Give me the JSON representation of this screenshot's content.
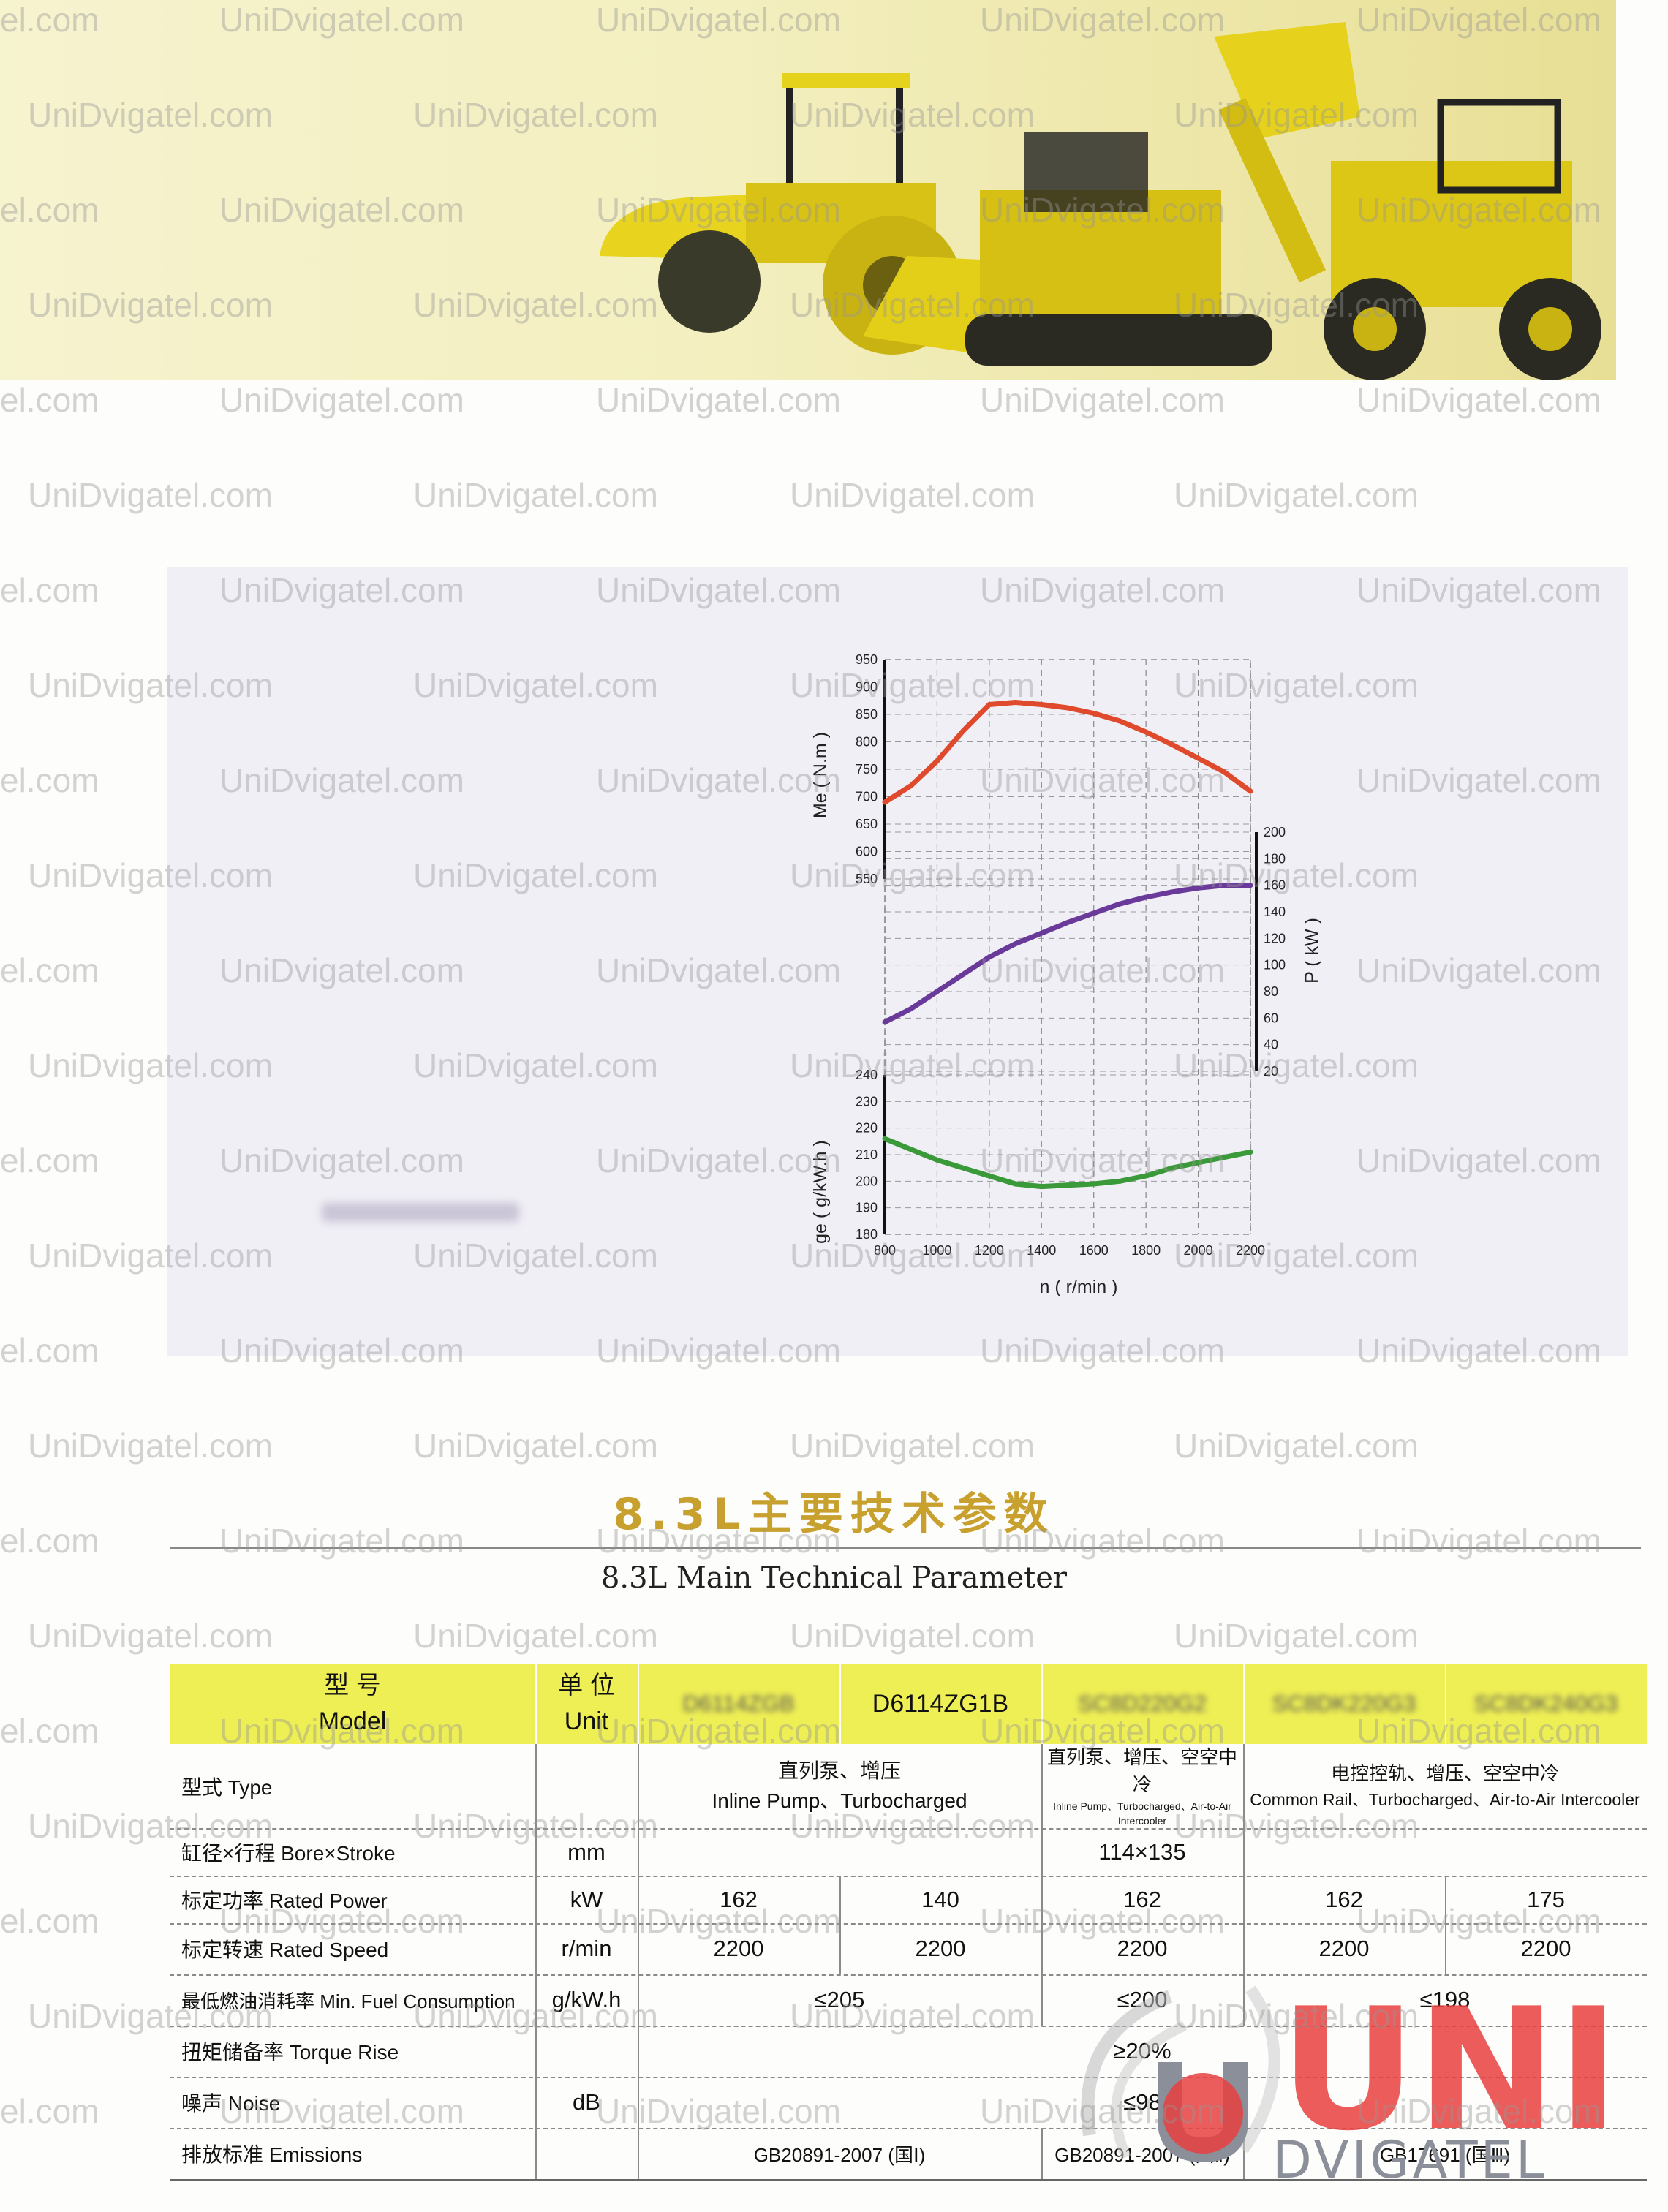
{
  "watermark": {
    "text": "UniDvigatel.com",
    "partial": "el.com"
  },
  "chart_data": {
    "type": "line",
    "xlabel": "n ( r/min )",
    "x_ticks": [
      800,
      1000,
      1200,
      1400,
      1600,
      1800,
      2000,
      2200
    ],
    "xlim": [
      800,
      2200
    ],
    "axes": [
      {
        "label": "Me ( N.m )",
        "ticks": [
          550,
          600,
          650,
          700,
          750,
          800,
          850,
          900,
          950
        ],
        "ylim": [
          550,
          950
        ],
        "series": {
          "color": "#e04a2c",
          "x": [
            800,
            900,
            1000,
            1100,
            1200,
            1300,
            1400,
            1500,
            1600,
            1700,
            1800,
            1900,
            2000,
            2100,
            2200
          ],
          "y": [
            690,
            720,
            765,
            820,
            868,
            872,
            868,
            862,
            852,
            838,
            818,
            795,
            770,
            745,
            710
          ]
        }
      },
      {
        "label": "P ( kW )",
        "ticks": [
          20,
          40,
          60,
          80,
          100,
          120,
          140,
          160,
          180,
          200
        ],
        "ylim": [
          20,
          200
        ],
        "series": {
          "color": "#6a3a9a",
          "x": [
            800,
            900,
            1000,
            1100,
            1200,
            1300,
            1400,
            1500,
            1600,
            1700,
            1800,
            1900,
            2000,
            2100,
            2200
          ],
          "y": [
            57,
            67,
            80,
            93,
            106,
            116,
            124,
            132,
            139,
            146,
            151,
            155,
            158,
            160,
            160
          ]
        }
      },
      {
        "label": "ge ( g/kW.h )",
        "ticks": [
          180,
          190,
          200,
          210,
          220,
          230,
          240
        ],
        "ylim": [
          180,
          240
        ],
        "series": {
          "color": "#3a9a3a",
          "x": [
            800,
            900,
            1000,
            1100,
            1200,
            1300,
            1400,
            1500,
            1600,
            1700,
            1800,
            1900,
            2000,
            2100,
            2200
          ],
          "y": [
            216,
            212,
            208,
            205,
            202,
            199,
            198,
            198.5,
            199,
            200,
            202,
            205,
            207,
            209,
            211
          ]
        }
      }
    ]
  },
  "title": {
    "cn": "8.3L主要技术参数",
    "en": "8.3L Main Technical Parameter"
  },
  "table": {
    "header": {
      "model_cn": "型 号",
      "model_en": "Model",
      "unit_cn": "单 位",
      "unit_en": "Unit",
      "models": [
        "D6114ZGB",
        "D6114ZG1B",
        "SC8D220G2",
        "SC8DK220G3",
        "SC8DK240G3"
      ]
    },
    "rows": {
      "type": {
        "label": "型式 Type",
        "unit": "",
        "inline_cn": "直列泵、增压",
        "inline_en": "Inline Pump、Turbocharged",
        "intercooled_cn": "直列泵、增压、空空中冷",
        "intercooled_en": "Inline Pump、Turbocharged、Air-to-Air Intercooler",
        "common_cn": "电控控轨、增压、空空中冷",
        "common_en": "Common Rail、Turbocharged、Air-to-Air Intercooler"
      },
      "bore": {
        "label": "缸径×行程 Bore×Stroke",
        "unit": "mm",
        "value": "114×135"
      },
      "power": {
        "label": "标定功率 Rated Power",
        "unit": "kW",
        "values": [
          "162",
          "140",
          "162",
          "162",
          "175"
        ]
      },
      "speed": {
        "label": "标定转速 Rated Speed",
        "unit": "r/min",
        "values": [
          "2200",
          "2200",
          "2200",
          "2200",
          "2200"
        ]
      },
      "fuel": {
        "label": "最低燃油消耗率 Min. Fuel Consumption",
        "unit": "g/kW.h",
        "v1": "≤205",
        "v2": "≤200",
        "v3": "≤198"
      },
      "torque": {
        "label": "扭矩储备率 Torque Rise",
        "unit": "",
        "value": "≥20%"
      },
      "noise": {
        "label": "噪声 Noise",
        "unit": "dB",
        "value": "≤98"
      },
      "emissions": {
        "label": "排放标准 Emissions",
        "unit": "",
        "v1": "GB20891-2007 (国Ⅰ)",
        "v2": "GB20891-2007 (国Ⅱ)",
        "v3": "GB17691 (国Ⅲ)"
      }
    }
  },
  "logo": {
    "main": "UNI",
    "sub": "DVIGATEL"
  }
}
